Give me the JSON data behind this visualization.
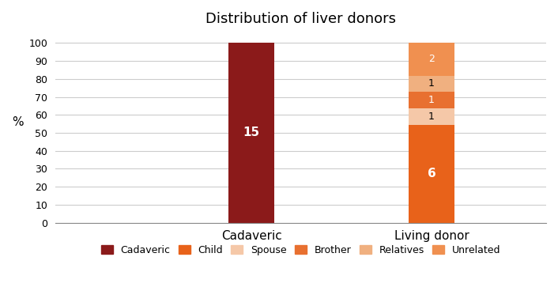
{
  "title": "Distribution of liver donors",
  "categories": [
    "Cadaveric",
    "Living donor"
  ],
  "segments": [
    {
      "name": "Cadaveric",
      "color": "#8B1A1A",
      "values": [
        100,
        0
      ],
      "labels": [
        "15",
        ""
      ],
      "label_colors": [
        "white",
        "white"
      ]
    },
    {
      "name": "Child",
      "color": "#E8621A",
      "values": [
        0,
        54.545
      ],
      "labels": [
        "",
        "6"
      ],
      "label_colors": [
        "white",
        "white"
      ]
    },
    {
      "name": "Spouse",
      "color": "#F5C8A8",
      "values": [
        0,
        9.091
      ],
      "labels": [
        "",
        "1"
      ],
      "label_colors": [
        "black",
        "black"
      ]
    },
    {
      "name": "Brother",
      "color": "#E87030",
      "values": [
        0,
        9.091
      ],
      "labels": [
        "",
        "1"
      ],
      "label_colors": [
        "white",
        "white"
      ]
    },
    {
      "name": "Relatives",
      "color": "#F0B080",
      "values": [
        0,
        9.091
      ],
      "labels": [
        "",
        "1"
      ],
      "label_colors": [
        "black",
        "black"
      ]
    },
    {
      "name": "Unrelated",
      "color": "#F09050",
      "values": [
        0,
        18.182
      ],
      "labels": [
        "",
        "2"
      ],
      "label_colors": [
        "white",
        "white"
      ]
    }
  ],
  "ylabel": "%",
  "ylim": [
    0,
    105
  ],
  "yticks": [
    0,
    10,
    20,
    30,
    40,
    50,
    60,
    70,
    80,
    90,
    100
  ],
  "xlim": [
    -0.5,
    2.5
  ],
  "x_positions": [
    0.7,
    1.8
  ],
  "background_color": "#ffffff",
  "grid_color": "#cccccc",
  "title_fontsize": 13,
  "legend_fontsize": 9,
  "bar_width": 0.28
}
